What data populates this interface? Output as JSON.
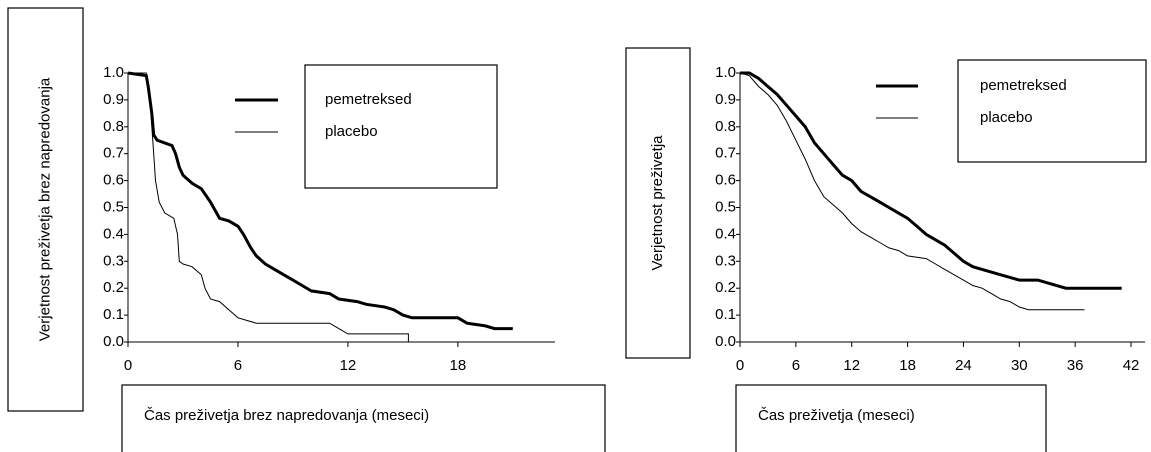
{
  "chart_data": [
    {
      "type": "line",
      "y_label": "Verjetnost preživetja brez napredovanja",
      "x_label": "Čas preživetja brez napredovanja (meseci)",
      "xlim": [
        0,
        23.3
      ],
      "xticks": [
        0,
        6,
        12,
        18
      ],
      "ylim": [
        0,
        1
      ],
      "yticks": [
        {
          "value": 0,
          "label": "0.0"
        },
        0.1,
        0.2,
        0.3,
        0.4,
        0.5,
        0.6,
        0.7,
        0.8,
        0.9,
        {
          "value": 1,
          "label": "1.0"
        }
      ],
      "series": [
        {
          "name": "pemetreksed",
          "color": "#000000",
          "line_width": 3,
          "x": [
            0,
            1,
            1.1,
            1.3,
            1.4,
            1.6,
            2,
            2.4,
            2.6,
            2.8,
            3,
            3.5,
            4,
            4.5,
            5,
            5.5,
            6,
            6.3,
            6.7,
            7,
            7.5,
            8,
            8.5,
            9,
            9.5,
            10,
            11,
            11.5,
            12.5,
            13,
            14,
            14.5,
            15,
            15.5,
            18,
            18.5,
            19.5,
            20,
            21
          ],
          "values": [
            1,
            0.99,
            0.95,
            0.85,
            0.77,
            0.75,
            0.74,
            0.73,
            0.7,
            0.65,
            0.62,
            0.59,
            0.57,
            0.52,
            0.46,
            0.45,
            0.43,
            0.4,
            0.35,
            0.32,
            0.29,
            0.27,
            0.25,
            0.23,
            0.21,
            0.19,
            0.18,
            0.16,
            0.15,
            0.14,
            0.13,
            0.12,
            0.1,
            0.09,
            0.09,
            0.07,
            0.06,
            0.05,
            0.05
          ]
        },
        {
          "name": "placebo",
          "color": "#000000",
          "line_width": 1,
          "x": [
            0,
            1,
            1.2,
            1.4,
            1.5,
            1.7,
            2,
            2.5,
            2.7,
            2.8,
            3,
            3.5,
            4,
            4.2,
            4.5,
            5,
            5.5,
            6,
            6.5,
            7,
            11,
            11.5,
            12,
            13,
            15.3,
            15.3
          ],
          "values": [
            1,
            1,
            0.9,
            0.7,
            0.6,
            0.52,
            0.48,
            0.46,
            0.4,
            0.3,
            0.29,
            0.28,
            0.25,
            0.2,
            0.16,
            0.15,
            0.12,
            0.09,
            0.08,
            0.07,
            0.07,
            0.05,
            0.03,
            0.03,
            0.03,
            0
          ]
        }
      ]
    },
    {
      "type": "line",
      "y_label": "Verjetnost preživetja",
      "x_label": "Čas preživetja (meseci)",
      "xlim": [
        0,
        43.5
      ],
      "xticks": [
        0,
        6,
        12,
        18,
        24,
        30,
        36,
        42
      ],
      "ylim": [
        0,
        1
      ],
      "yticks": [
        {
          "value": 0,
          "label": "0.0"
        },
        0.1,
        0.2,
        0.3,
        0.4,
        0.5,
        0.6,
        0.7,
        0.8,
        0.9,
        {
          "value": 1,
          "label": "1.0"
        }
      ],
      "series": [
        {
          "name": "pemetreksed",
          "color": "#000000",
          "line_width": 3,
          "x": [
            0,
            1,
            2,
            3,
            4,
            5,
            6,
            7,
            8,
            9,
            10,
            11,
            12,
            13,
            14,
            15,
            16,
            17,
            18,
            19,
            20,
            21,
            22,
            23,
            24,
            25,
            26,
            28,
            29,
            30,
            32,
            33,
            35,
            41
          ],
          "values": [
            1,
            1,
            0.98,
            0.95,
            0.92,
            0.88,
            0.84,
            0.8,
            0.74,
            0.7,
            0.66,
            0.62,
            0.6,
            0.56,
            0.54,
            0.52,
            0.5,
            0.48,
            0.46,
            0.43,
            0.4,
            0.38,
            0.36,
            0.33,
            0.3,
            0.28,
            0.27,
            0.25,
            0.24,
            0.23,
            0.23,
            0.22,
            0.2,
            0.2
          ]
        },
        {
          "name": "placebo",
          "color": "#000000",
          "line_width": 1,
          "x": [
            0,
            1,
            2,
            3,
            4,
            5,
            6,
            7,
            8,
            9,
            10,
            11,
            12,
            13,
            14,
            15,
            16,
            17,
            18,
            20,
            21,
            22,
            23,
            24,
            25,
            26,
            27,
            28,
            29,
            30,
            31,
            37
          ],
          "values": [
            1,
            0.99,
            0.95,
            0.92,
            0.88,
            0.82,
            0.75,
            0.68,
            0.6,
            0.54,
            0.51,
            0.48,
            0.44,
            0.41,
            0.39,
            0.37,
            0.35,
            0.34,
            0.32,
            0.31,
            0.29,
            0.27,
            0.25,
            0.23,
            0.21,
            0.2,
            0.18,
            0.16,
            0.15,
            0.13,
            0.12,
            0.12
          ]
        }
      ]
    }
  ]
}
